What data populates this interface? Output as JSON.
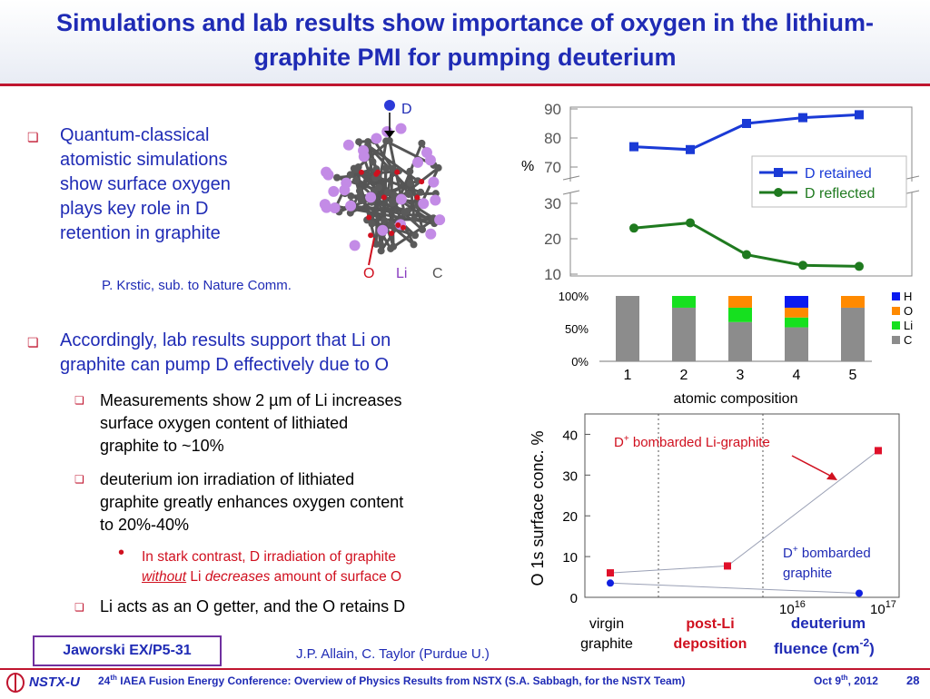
{
  "title": "Simulations and lab results show importance of oxygen in the lithium-graphite PMI for pumping deuterium",
  "left": {
    "bullet1": [
      "Quantum-classical",
      "atomistic simulations",
      "show surface oxygen",
      "plays key role in D",
      "retention in graphite"
    ],
    "citation1": "P. Krstic, sub. to Nature Comm.",
    "bullet2": [
      "Accordingly, lab results support that Li on",
      "graphite can pump D effectively due to O"
    ],
    "sub1": [
      "Measurements show 2 µm of Li increases",
      "surface oxygen content of lithiated",
      "graphite to ~10%"
    ],
    "sub2": [
      "deuterium ion irradiation of lithiated",
      "graphite greatly enhances oxygen content",
      "to 20%-40%"
    ],
    "subsub": {
      "line1": "In stark contrast, D irradiation of graphite",
      "without": "without",
      "li": " Li ",
      "decreases": "decreases",
      "rest": " amount of surface O"
    },
    "sub3": "Li acts as an O getter, and the O retains D"
  },
  "molecule": {
    "d_label": "D",
    "o_label": "O",
    "li_label": "Li",
    "c_label": "C"
  },
  "chart_data": [
    {
      "type": "line",
      "ylabel": "%",
      "x": [
        1,
        2,
        3,
        4,
        5
      ],
      "yticks_upper": [
        "90",
        "80",
        "70"
      ],
      "yticks_lower": [
        "30",
        "20",
        "10"
      ],
      "series": [
        {
          "name": "D retained",
          "values": [
            77,
            76,
            85,
            87,
            88
          ],
          "color": "#1a3ad6"
        },
        {
          "name": "D reflected",
          "values": [
            23,
            24.5,
            15.5,
            12.5,
            12.2
          ],
          "color": "#1f7a1f"
        }
      ]
    },
    {
      "type": "bar",
      "xlabel": "atomic composition",
      "categories": [
        "1",
        "2",
        "3",
        "4",
        "5"
      ],
      "yticks": [
        "100%",
        "50%",
        "0%"
      ],
      "series": [
        {
          "name": "C",
          "values": [
            100,
            82,
            60,
            52,
            82
          ],
          "color": "#8c8c8c"
        },
        {
          "name": "Li",
          "values": [
            0,
            18,
            22,
            15,
            0
          ],
          "color": "#16e01f"
        },
        {
          "name": "O",
          "values": [
            0,
            0,
            18,
            15,
            18
          ],
          "color": "#ff8a00"
        },
        {
          "name": "H",
          "values": [
            0,
            0,
            0,
            18,
            0
          ],
          "color": "#0a1af0"
        }
      ],
      "legend_order": [
        "H",
        "O",
        "Li",
        "C"
      ]
    },
    {
      "type": "scatter",
      "ylabel": "O 1s surface conc. %",
      "ylim": [
        0,
        45
      ],
      "yticks": [
        "40",
        "30",
        "20",
        "10",
        "0"
      ],
      "regions": [
        {
          "lines": [
            "virgin",
            "graphite"
          ],
          "color": "#000000"
        },
        {
          "lines": [
            "post-Li",
            "deposition"
          ],
          "color": "#d0101f"
        },
        {
          "lines": [
            "deuterium",
            "fluence (cm",
            "-2",
            ")"
          ],
          "color": "#1f2bb5"
        }
      ],
      "xtick_labels": [
        {
          "base": "10",
          "exp": "16"
        },
        {
          "base": "10",
          "exp": "17"
        }
      ],
      "series": [
        {
          "name": "D+ bombarded Li-graphite",
          "label_main": "D",
          "label_sup": "+",
          "label_rest": " bombarded Li-graphite",
          "points": [
            6,
            7.7,
            36
          ],
          "color": "#e0102a"
        },
        {
          "name": "D+ bombarded graphite",
          "label_main": "D",
          "label_sup": "+",
          "label_rest": " bombarded",
          "label_line2": "graphite",
          "points": [
            3.5,
            1
          ],
          "color": "#1020e0"
        }
      ]
    }
  ],
  "credits": {
    "jaworski": "Jaworski EX/P5-31",
    "allain": "J.P. Allain, C. Taylor (Purdue U.)"
  },
  "footer": {
    "logo": "NSTX-U",
    "num": "24",
    "sup": "th",
    "text": " IAEA Fusion Energy Conference: Overview of Physics Results from NSTX (S.A. Sabbagh, for the NSTX Team)",
    "date_pre": "Oct 9",
    "date_sup": "th",
    "date_post": ", 2012",
    "page": "28"
  },
  "colors": {
    "title": "#1f2bb5",
    "accent": "#c0152f"
  }
}
